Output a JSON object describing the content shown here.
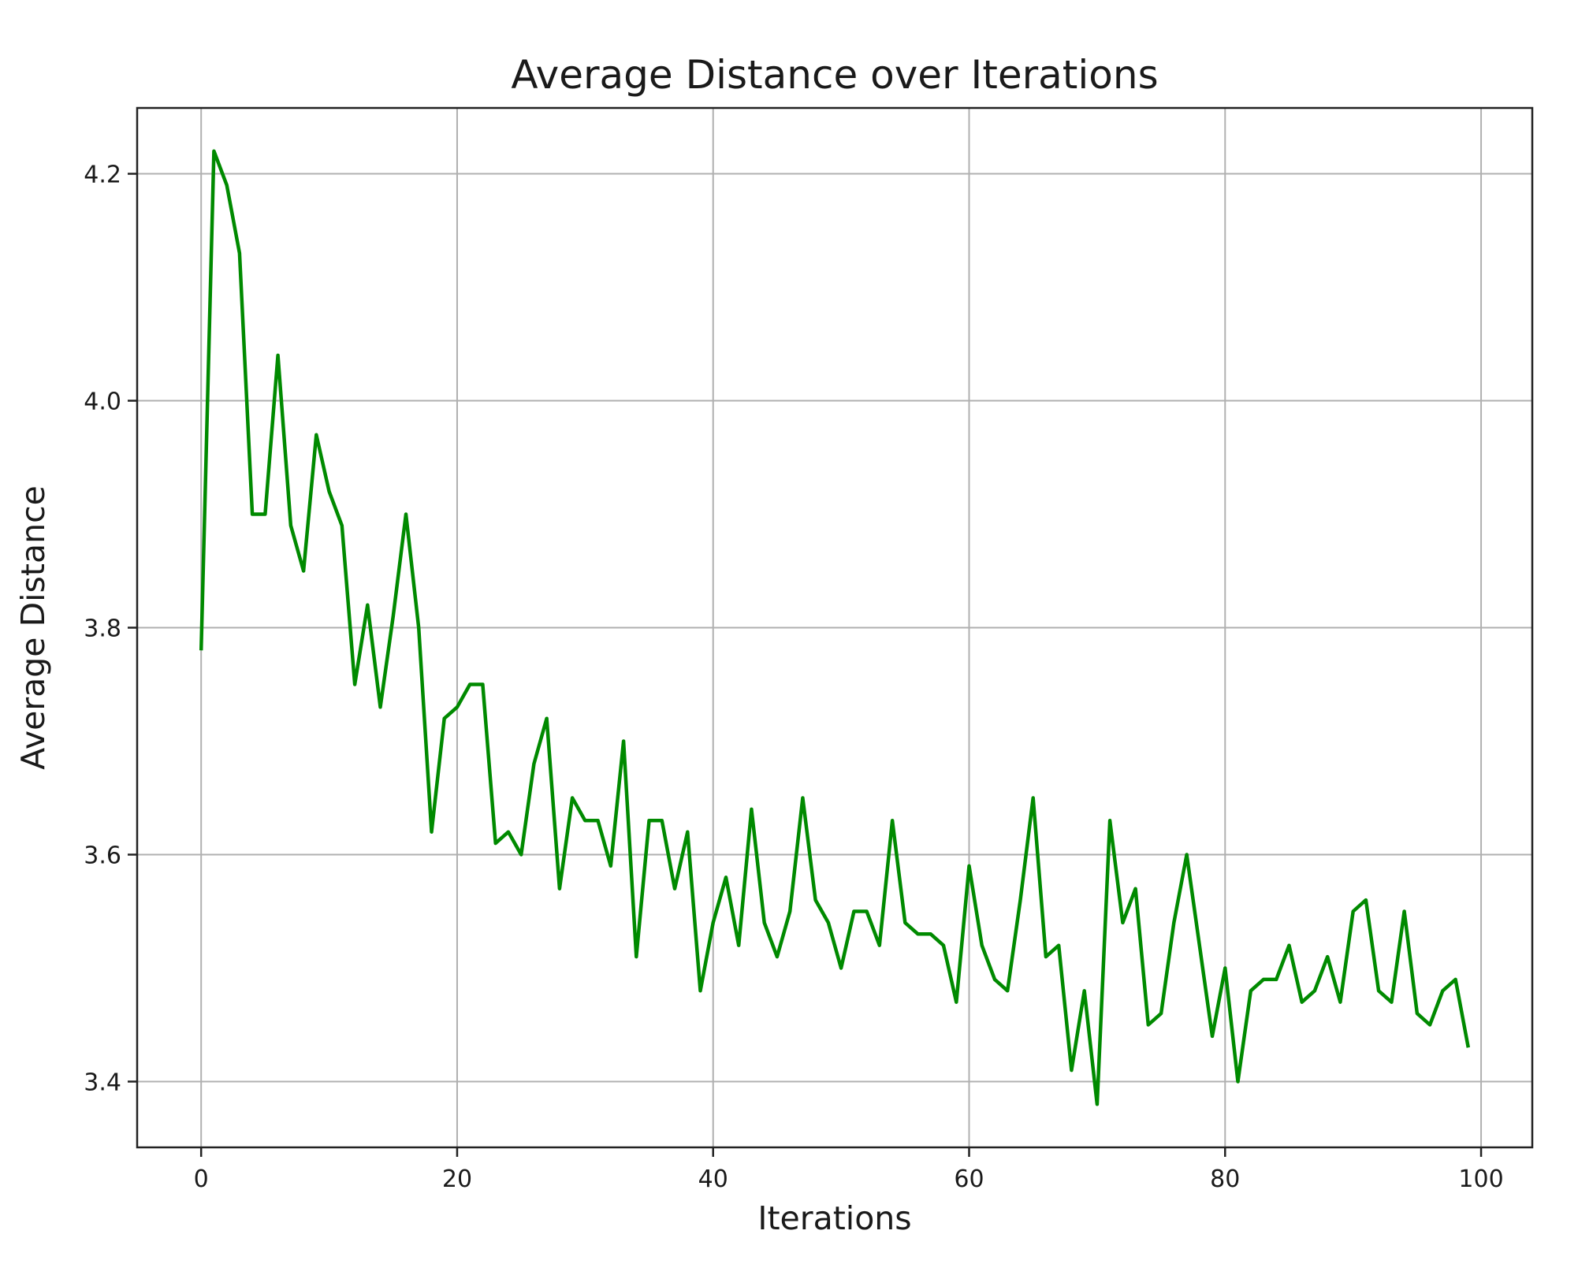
{
  "chart_data": {
    "type": "line",
    "title": "Average Distance over Iterations",
    "xlabel": "Iterations",
    "ylabel": "Average Distance",
    "xlim": [
      -5,
      104
    ],
    "ylim": [
      3.342,
      4.258
    ],
    "xticks": [
      0,
      20,
      40,
      60,
      80,
      100
    ],
    "yticks": [
      3.4,
      3.6,
      3.8,
      4.0,
      4.2
    ],
    "xtick_labels": [
      "0",
      "20",
      "40",
      "60",
      "80",
      "100"
    ],
    "ytick_labels": [
      "3.4",
      "3.6",
      "3.8",
      "4.0",
      "4.2"
    ],
    "grid": true,
    "line_color": "#008a00",
    "series": [
      {
        "x": [
          0,
          1,
          2,
          3,
          4,
          5,
          6,
          7,
          8,
          9,
          10,
          11,
          12,
          13,
          14,
          15,
          16,
          17,
          18,
          19,
          20,
          21,
          22,
          23,
          24,
          25,
          26,
          27,
          28,
          29,
          30,
          31,
          32,
          33,
          34,
          35,
          36,
          37,
          38,
          39,
          40,
          41,
          42,
          43,
          44,
          45,
          46,
          47,
          48,
          49,
          50,
          51,
          52,
          53,
          54,
          55,
          56,
          57,
          58,
          59,
          60,
          61,
          62,
          63,
          64,
          65,
          66,
          67,
          68,
          69,
          70,
          71,
          72,
          73,
          74,
          75,
          76,
          77,
          78,
          79,
          80,
          81,
          82,
          83,
          84,
          85,
          86,
          87,
          88,
          89,
          90,
          91,
          92,
          93,
          94,
          95,
          96,
          97,
          98,
          99
        ],
        "values": [
          3.78,
          4.22,
          4.19,
          4.13,
          3.9,
          3.9,
          4.04,
          3.89,
          3.85,
          3.97,
          3.92,
          3.89,
          3.75,
          3.82,
          3.73,
          3.81,
          3.9,
          3.8,
          3.62,
          3.72,
          3.73,
          3.75,
          3.75,
          3.61,
          3.62,
          3.6,
          3.68,
          3.72,
          3.57,
          3.65,
          3.63,
          3.63,
          3.59,
          3.7,
          3.51,
          3.63,
          3.63,
          3.57,
          3.62,
          3.48,
          3.54,
          3.58,
          3.52,
          3.64,
          3.54,
          3.51,
          3.55,
          3.65,
          3.56,
          3.54,
          3.5,
          3.55,
          3.55,
          3.52,
          3.63,
          3.54,
          3.53,
          3.53,
          3.52,
          3.47,
          3.59,
          3.52,
          3.49,
          3.48,
          3.56,
          3.65,
          3.51,
          3.52,
          3.41,
          3.48,
          3.38,
          3.63,
          3.54,
          3.57,
          3.45,
          3.46,
          3.54,
          3.6,
          3.52,
          3.44,
          3.5,
          3.4,
          3.48,
          3.49,
          3.49,
          3.52,
          3.47,
          3.48,
          3.51,
          3.47,
          3.55,
          3.56,
          3.48,
          3.47,
          3.55,
          3.46,
          3.45,
          3.48,
          3.49,
          3.43
        ]
      }
    ]
  }
}
